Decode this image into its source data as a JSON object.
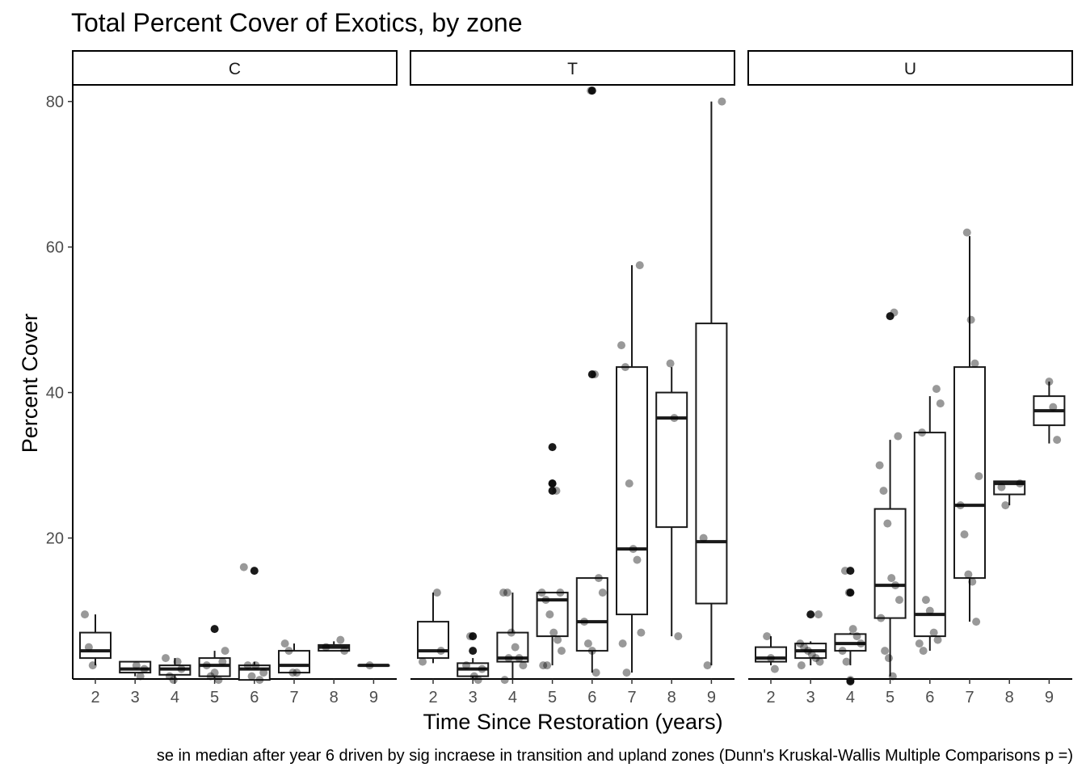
{
  "chart_data": {
    "type": "box",
    "title": "Total Percent Cover of Exotics, by zone",
    "xlabel": "Time Since Restoration (years)",
    "ylabel": "Percent Cover",
    "caption": "se in median after year 6 driven by sig incraese in transition and upland zones (Dunn's Kruskal-Wallis Multiple Comparisons p =)",
    "facets": [
      "C",
      "T",
      "U"
    ],
    "x_categories": [
      "2",
      "3",
      "4",
      "5",
      "6",
      "7",
      "8",
      "9"
    ],
    "y_ticks": [
      20,
      40,
      60,
      80
    ],
    "ylim": [
      0,
      82
    ],
    "grid": false,
    "boxes": {
      "C": [
        {
          "x": "2",
          "lower": 2.5,
          "q1": 3.5,
          "median": 4.5,
          "q3": 7,
          "upper": 9.5,
          "outliers": []
        },
        {
          "x": "3",
          "lower": 1.0,
          "q1": 1.5,
          "median": 2.0,
          "q3": 3.0,
          "upper": 3.0,
          "outliers": []
        },
        {
          "x": "4",
          "lower": 0.5,
          "q1": 1.2,
          "median": 2.0,
          "q3": 2.5,
          "upper": 3.5,
          "outliers": []
        },
        {
          "x": "5",
          "lower": 0.5,
          "q1": 1.0,
          "median": 2.5,
          "q3": 3.5,
          "upper": 4.5,
          "outliers": [
            7.5
          ]
        },
        {
          "x": "6",
          "lower": 0.5,
          "q1": 0.5,
          "median": 2.0,
          "q3": 2.5,
          "upper": 3.0,
          "outliers": [
            15.5
          ]
        },
        {
          "x": "7",
          "lower": 1.5,
          "q1": 1.5,
          "median": 2.5,
          "q3": 4.5,
          "upper": 5.5,
          "outliers": []
        },
        {
          "x": "8",
          "lower": 4.5,
          "q1": 4.5,
          "median": 5.0,
          "q3": 5.3,
          "upper": 5.8,
          "outliers": []
        },
        {
          "x": "9",
          "lower": 2.5,
          "q1": 2.5,
          "median": 2.5,
          "q3": 2.5,
          "upper": 2.5,
          "outliers": []
        }
      ],
      "T": [
        {
          "x": "2",
          "lower": 2.8,
          "q1": 3.5,
          "median": 4.5,
          "q3": 8.5,
          "upper": 12.5,
          "outliers": []
        },
        {
          "x": "3",
          "lower": 0.5,
          "q1": 1.0,
          "median": 2.0,
          "q3": 2.8,
          "upper": 3.5,
          "outliers": [
            4.5,
            6.5
          ]
        },
        {
          "x": "4",
          "lower": 0.5,
          "q1": 3.0,
          "median": 3.5,
          "q3": 7.0,
          "upper": 12.5,
          "outliers": []
        },
        {
          "x": "5",
          "lower": 2.5,
          "q1": 6.5,
          "median": 11.5,
          "q3": 12.5,
          "upper": 12.5,
          "outliers": [
            26.5,
            27.5,
            32.5
          ]
        },
        {
          "x": "6",
          "lower": 1.5,
          "q1": 4.5,
          "median": 8.5,
          "q3": 14.5,
          "upper": 14.5,
          "outliers": [
            42.5,
            81.5
          ]
        },
        {
          "x": "7",
          "lower": 1.5,
          "q1": 9.5,
          "median": 18.5,
          "q3": 43.5,
          "upper": 57.5,
          "outliers": []
        },
        {
          "x": "8",
          "lower": 6.5,
          "q1": 21.5,
          "median": 36.5,
          "q3": 40.0,
          "upper": 43.5,
          "outliers": []
        },
        {
          "x": "9",
          "lower": 2.5,
          "q1": 11.0,
          "median": 19.5,
          "q3": 49.5,
          "upper": 80.0,
          "outliers": []
        }
      ],
      "U": [
        {
          "x": "2",
          "lower": 2.5,
          "q1": 3.0,
          "median": 3.5,
          "q3": 5.0,
          "upper": 6.5,
          "outliers": []
        },
        {
          "x": "3",
          "lower": 2.5,
          "q1": 3.5,
          "median": 4.5,
          "q3": 5.5,
          "upper": 5.8,
          "outliers": [
            9.5
          ]
        },
        {
          "x": "4",
          "lower": 2.5,
          "q1": 4.5,
          "median": 5.5,
          "q3": 6.8,
          "upper": 7.0,
          "outliers": [
            0.3,
            12.5,
            15.5
          ]
        },
        {
          "x": "5",
          "lower": 1.0,
          "q1": 9.0,
          "median": 13.5,
          "q3": 24.0,
          "upper": 33.5,
          "outliers": [
            50.5
          ]
        },
        {
          "x": "6",
          "lower": 4.5,
          "q1": 6.5,
          "median": 9.5,
          "q3": 34.5,
          "upper": 39.5,
          "outliers": []
        },
        {
          "x": "7",
          "lower": 8.5,
          "q1": 14.5,
          "median": 24.5,
          "q3": 43.5,
          "upper": 61.5,
          "outliers": []
        },
        {
          "x": "8",
          "lower": 24.5,
          "q1": 26.0,
          "median": 27.5,
          "q3": 27.8,
          "upper": 27.8,
          "outliers": []
        },
        {
          "x": "9",
          "lower": 33.0,
          "q1": 35.5,
          "median": 37.5,
          "q3": 39.5,
          "upper": 41.5,
          "outliers": []
        }
      ]
    },
    "points": {
      "C": [
        [
          "2",
          9.5
        ],
        [
          "2",
          5.0
        ],
        [
          "2",
          2.5
        ],
        [
          "3",
          2.5
        ],
        [
          "3",
          1.0
        ],
        [
          "3",
          2.0
        ],
        [
          "4",
          3.5
        ],
        [
          "4",
          1.0
        ],
        [
          "4",
          0.5
        ],
        [
          "4",
          3.0
        ],
        [
          "4",
          2.0
        ],
        [
          "5",
          4.5
        ],
        [
          "5",
          2.5
        ],
        [
          "5",
          1.0
        ],
        [
          "5",
          1.5
        ],
        [
          "5",
          0.5
        ],
        [
          "5",
          3.0
        ],
        [
          "6",
          16.0
        ],
        [
          "6",
          2.5
        ],
        [
          "6",
          1.0
        ],
        [
          "6",
          2.5
        ],
        [
          "6",
          0.5
        ],
        [
          "6",
          1.5
        ],
        [
          "7",
          5.5
        ],
        [
          "7",
          4.5
        ],
        [
          "7",
          1.5
        ],
        [
          "7",
          1.5
        ],
        [
          "8",
          6.0
        ],
        [
          "8",
          4.5
        ],
        [
          "8",
          5.0
        ],
        [
          "9",
          2.5
        ]
      ],
      "T": [
        [
          "2",
          12.5
        ],
        [
          "2",
          4.5
        ],
        [
          "2",
          3.0
        ],
        [
          "3",
          2.5
        ],
        [
          "3",
          6.5
        ],
        [
          "3",
          1.0
        ],
        [
          "3",
          0.5
        ],
        [
          "3",
          2.0
        ],
        [
          "4",
          12.5
        ],
        [
          "4",
          12.5
        ],
        [
          "4",
          7.0
        ],
        [
          "4",
          5.0
        ],
        [
          "4",
          3.5
        ],
        [
          "4",
          2.5
        ],
        [
          "4",
          0.5
        ],
        [
          "4",
          3.5
        ],
        [
          "5",
          27.5
        ],
        [
          "5",
          26.5
        ],
        [
          "5",
          12.5
        ],
        [
          "5",
          12.5
        ],
        [
          "5",
          11.5
        ],
        [
          "5",
          9.5
        ],
        [
          "5",
          7.0
        ],
        [
          "5",
          6.0
        ],
        [
          "5",
          4.5
        ],
        [
          "5",
          2.5
        ],
        [
          "5",
          2.5
        ],
        [
          "6",
          81.5
        ],
        [
          "6",
          42.5
        ],
        [
          "6",
          14.5
        ],
        [
          "6",
          12.5
        ],
        [
          "6",
          8.5
        ],
        [
          "6",
          5.5
        ],
        [
          "6",
          4.5
        ],
        [
          "6",
          1.5
        ],
        [
          "7",
          57.5
        ],
        [
          "7",
          46.5
        ],
        [
          "7",
          43.5
        ],
        [
          "7",
          27.5
        ],
        [
          "7",
          18.5
        ],
        [
          "7",
          17.0
        ],
        [
          "7",
          7.0
        ],
        [
          "7",
          5.5
        ],
        [
          "7",
          1.5
        ],
        [
          "8",
          44.0
        ],
        [
          "8",
          36.5
        ],
        [
          "8",
          6.5
        ],
        [
          "9",
          80.0
        ],
        [
          "9",
          20.0
        ],
        [
          "9",
          2.5
        ]
      ],
      "U": [
        [
          "2",
          6.5
        ],
        [
          "2",
          3.5
        ],
        [
          "2",
          2.0
        ],
        [
          "3",
          9.5
        ],
        [
          "3",
          5.5
        ],
        [
          "3",
          5.0
        ],
        [
          "3",
          4.5
        ],
        [
          "3",
          4.0
        ],
        [
          "3",
          3.5
        ],
        [
          "3",
          3.0
        ],
        [
          "3",
          2.5
        ],
        [
          "4",
          15.5
        ],
        [
          "4",
          12.5
        ],
        [
          "4",
          7.5
        ],
        [
          "4",
          6.5
        ],
        [
          "4",
          5.5
        ],
        [
          "4",
          4.5
        ],
        [
          "4",
          3.0
        ],
        [
          "4",
          0.5
        ],
        [
          "5",
          51.0
        ],
        [
          "5",
          34.0
        ],
        [
          "5",
          30.0
        ],
        [
          "5",
          26.5
        ],
        [
          "5",
          22.0
        ],
        [
          "5",
          14.5
        ],
        [
          "5",
          13.5
        ],
        [
          "5",
          11.5
        ],
        [
          "5",
          9.0
        ],
        [
          "5",
          4.5
        ],
        [
          "5",
          3.5
        ],
        [
          "5",
          1.0
        ],
        [
          "6",
          40.5
        ],
        [
          "6",
          38.5
        ],
        [
          "6",
          34.5
        ],
        [
          "6",
          11.5
        ],
        [
          "6",
          10.0
        ],
        [
          "6",
          7.0
        ],
        [
          "6",
          6.0
        ],
        [
          "6",
          5.5
        ],
        [
          "6",
          4.5
        ],
        [
          "7",
          62.0
        ],
        [
          "7",
          50.0
        ],
        [
          "7",
          44.0
        ],
        [
          "7",
          28.5
        ],
        [
          "7",
          24.5
        ],
        [
          "7",
          20.5
        ],
        [
          "7",
          15.0
        ],
        [
          "7",
          14.0
        ],
        [
          "7",
          8.5
        ],
        [
          "8",
          27.5
        ],
        [
          "8",
          27.0
        ],
        [
          "8",
          24.5
        ],
        [
          "9",
          41.5
        ],
        [
          "9",
          38.0
        ],
        [
          "9",
          33.5
        ]
      ]
    }
  }
}
